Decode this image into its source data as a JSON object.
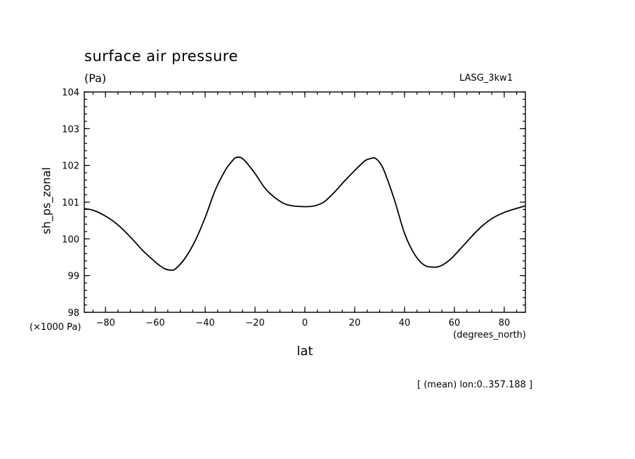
{
  "chart_data": {
    "type": "line",
    "title": "surface air pressure",
    "subtitle": "(Pa)",
    "source_label": "LASG_3kw1",
    "xlabel": "lat",
    "ylabel": "sh_ps_zonal",
    "x_unit_label": "(degrees_north)",
    "y_unit_label": "(×1000 Pa)",
    "footnote": "[ (mean) lon:0..357.188 ]",
    "xlim": [
      -88.5,
      88.5
    ],
    "ylim": [
      98,
      104
    ],
    "xticks": [
      -80,
      -60,
      -40,
      -20,
      0,
      20,
      40,
      60,
      80
    ],
    "yticks": [
      98,
      99,
      100,
      101,
      102,
      103,
      104
    ],
    "grid": false,
    "legend": "none",
    "line_color": "#000000",
    "series": [
      {
        "x": [
          -88.5,
          -85,
          -80,
          -75,
          -70,
          -65,
          -60,
          -58,
          -56,
          -54,
          -52,
          -48,
          -44,
          -40,
          -36,
          -32,
          -30,
          -28,
          -26,
          -24,
          -20,
          -16,
          -12,
          -8,
          -5,
          -2,
          2,
          5,
          8,
          12,
          16,
          20,
          24,
          26,
          28,
          30,
          32,
          36,
          40,
          44,
          48,
          52,
          54,
          56,
          58,
          60,
          65,
          70,
          75,
          80,
          85,
          88.5
        ],
        "y": [
          100.82,
          100.78,
          100.62,
          100.38,
          100.05,
          99.68,
          99.37,
          99.26,
          99.18,
          99.15,
          99.18,
          99.48,
          99.95,
          100.58,
          101.32,
          101.86,
          102.05,
          102.2,
          102.22,
          102.12,
          101.78,
          101.38,
          101.12,
          100.95,
          100.9,
          100.88,
          100.88,
          100.92,
          101.02,
          101.28,
          101.58,
          101.86,
          102.12,
          102.18,
          102.2,
          102.08,
          101.82,
          101.05,
          100.15,
          99.58,
          99.28,
          99.23,
          99.25,
          99.32,
          99.42,
          99.55,
          99.92,
          100.28,
          100.55,
          100.72,
          100.83,
          100.9
        ]
      }
    ]
  }
}
